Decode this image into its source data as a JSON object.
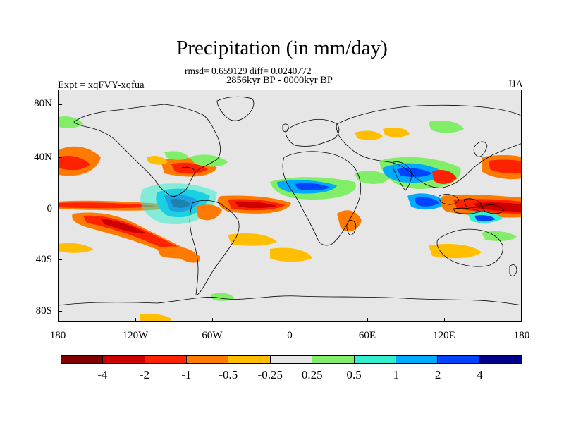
{
  "title": "Precipitation (in mm/day)",
  "stats": "rmsd= 0.659129 diff= 0.0240772",
  "period": "2856kyr BP - 0000kyr BP",
  "experiment": "Expt = xqFVY-xqfua",
  "season": "JJA",
  "lat_labels": [
    "80N",
    "40N",
    "0",
    "40S",
    "80S"
  ],
  "lon_labels": [
    "180",
    "120W",
    "60W",
    "0",
    "60E",
    "120E",
    "180"
  ],
  "colorbar": {
    "colors": [
      "#800000",
      "#cc0000",
      "#ff2200",
      "#ff7a00",
      "#ffbf00",
      "#e6e6e6",
      "#80ee66",
      "#33eecc",
      "#00aaff",
      "#0044ff",
      "#000088"
    ],
    "labels": [
      "-4",
      "-2",
      "-1",
      "-0.5",
      "-0.25",
      "0.25",
      "0.5",
      "1",
      "2",
      "4"
    ]
  }
}
